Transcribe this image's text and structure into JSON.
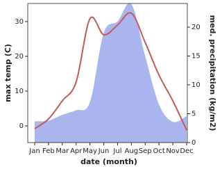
{
  "chart_data": {
    "type": "line-area",
    "categories": [
      "Jan",
      "Feb",
      "Mar",
      "Apr",
      "May",
      "Jun",
      "Jul",
      "Aug",
      "Sep",
      "Oct",
      "Nov",
      "Dec"
    ],
    "x_label": "date (month)",
    "y_label": "max temp (C)",
    "y2_label": "med. precipitation (kg/m2)",
    "series": [
      {
        "name": "max temp",
        "color": "#c75858",
        "values": [
          -0.8,
          2,
          7.2,
          12.6,
          30.8,
          26.2,
          29,
          32.4,
          24,
          14.6,
          7.2,
          -1.2
        ]
      },
      {
        "name": "med. precipitation",
        "color": "#aab7ef",
        "axis": "y2",
        "values": [
          3.7,
          3.8,
          4.8,
          5.6,
          7,
          19,
          21,
          24,
          15,
          6.6,
          3.6,
          4.6
        ]
      }
    ],
    "ylim": [
      -4.8,
      35.2
    ],
    "yticks": [
      0,
      10,
      20,
      30
    ],
    "y2lim": [
      0,
      24.1
    ],
    "y2ticks": [
      0,
      5,
      10,
      15,
      20
    ]
  }
}
